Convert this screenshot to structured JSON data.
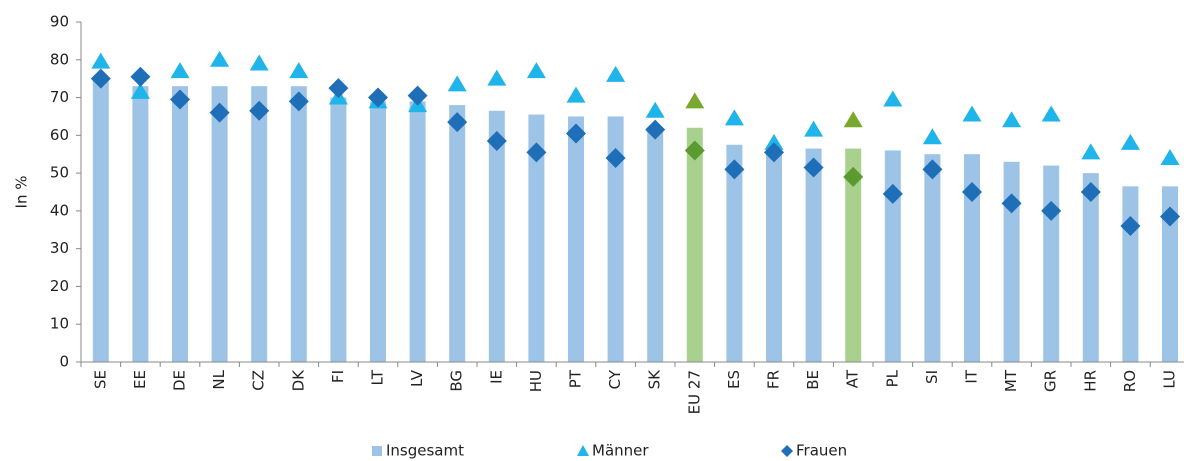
{
  "chart_data": {
    "type": "bar",
    "y_label": "In %",
    "categories": [
      "SE",
      "EE",
      "DE",
      "NL",
      "CZ",
      "DK",
      "FI",
      "LT",
      "LV",
      "BG",
      "IE",
      "HU",
      "PT",
      "CY",
      "SK",
      "EU 27",
      "ES",
      "FR",
      "BE",
      "AT",
      "PL",
      "SI",
      "IT",
      "MT",
      "GR",
      "HR",
      "RO",
      "LU"
    ],
    "series": [
      {
        "name": "Insgesamt",
        "marker": "bar",
        "color": "#9dc3e6",
        "highlight_color": "#a9d18e",
        "values": [
          75,
          73,
          73,
          73,
          73,
          73,
          70,
          69,
          69,
          68,
          66.5,
          65.5,
          65,
          65,
          62,
          62,
          57.5,
          57,
          56.5,
          56.5,
          56,
          55,
          55,
          53,
          52,
          50,
          46.5,
          46.5
        ]
      },
      {
        "name": "Männer",
        "marker": "triangle",
        "color": "#1fb4ea",
        "highlight_color": "#7aa82c",
        "values": [
          79.5,
          71.5,
          77,
          80,
          79,
          77,
          70,
          69,
          68,
          73.5,
          75,
          77,
          70.5,
          76,
          66.5,
          69,
          64.5,
          58,
          61.5,
          64,
          69.5,
          59.5,
          65.5,
          64,
          65.5,
          55.5,
          58,
          54
        ]
      },
      {
        "name": "Frauen",
        "marker": "diamond",
        "color": "#1f6fb8",
        "highlight_color": "#5a9a30",
        "values": [
          75,
          75.5,
          69.5,
          66,
          66.5,
          69,
          72.5,
          70,
          70.5,
          63.5,
          58.5,
          55.5,
          60.5,
          54,
          61.5,
          56,
          51,
          55.5,
          51.5,
          49,
          44.5,
          51,
          45,
          42,
          40,
          45,
          36,
          38.5
        ]
      }
    ],
    "highlight": [
      15,
      19
    ],
    "ylim": [
      0,
      90
    ],
    "yticks": [
      0,
      10,
      20,
      30,
      40,
      50,
      60,
      70,
      80,
      90
    ],
    "grid": false,
    "legend": "bottom"
  }
}
